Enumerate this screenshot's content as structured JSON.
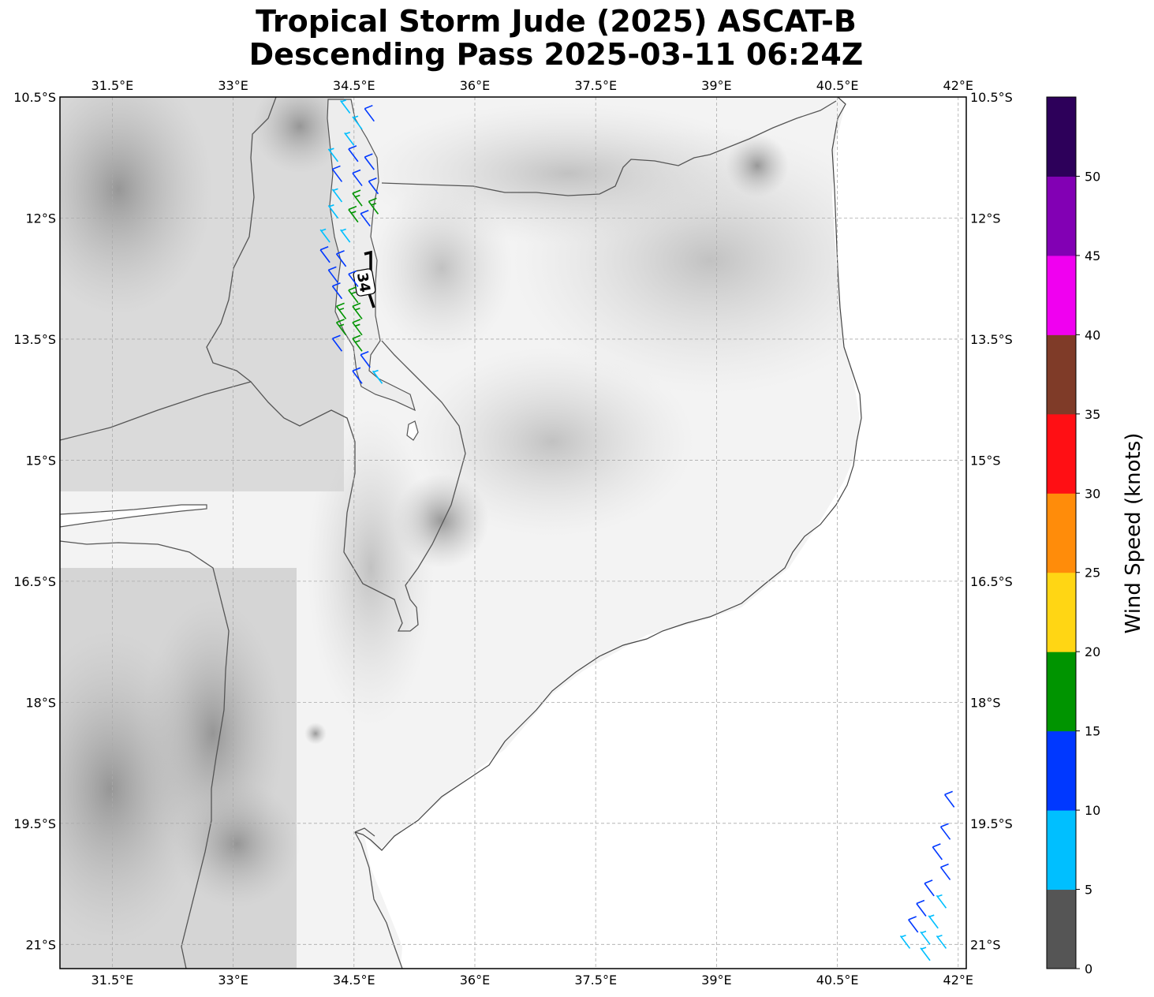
{
  "title": {
    "line1": "Tropical Storm Jude (2025) ASCAT-B",
    "line2": "Descending Pass 2025-03-11 06:24Z"
  },
  "map": {
    "lon_range": [
      30.85,
      42.1
    ],
    "lat_range": [
      -10.5,
      -21.3
    ],
    "lon_ticks": [
      {
        "value": 31.5,
        "label": "31.5°E"
      },
      {
        "value": 33.0,
        "label": "33°E"
      },
      {
        "value": 34.5,
        "label": "34.5°E"
      },
      {
        "value": 36.0,
        "label": "36°E"
      },
      {
        "value": 37.5,
        "label": "37.5°E"
      },
      {
        "value": 39.0,
        "label": "39°E"
      },
      {
        "value": 40.5,
        "label": "40.5°E"
      },
      {
        "value": 42.0,
        "label": "42°E"
      }
    ],
    "lat_ticks": [
      {
        "value": -10.5,
        "label": "10.5°S"
      },
      {
        "value": -12.0,
        "label": "12°S"
      },
      {
        "value": -13.5,
        "label": "13.5°S"
      },
      {
        "value": -15.0,
        "label": "15°S"
      },
      {
        "value": -16.5,
        "label": "16.5°S"
      },
      {
        "value": -18.0,
        "label": "18°S"
      },
      {
        "value": -19.5,
        "label": "19.5°S"
      },
      {
        "value": -21.0,
        "label": "21°S"
      }
    ],
    "grid": true,
    "contour_label": "34"
  },
  "colorbar": {
    "label": "Wind Speed (knots)",
    "bins": [
      {
        "from": 0,
        "to": 5,
        "color": "#555555"
      },
      {
        "from": 5,
        "to": 10,
        "color": "#00bfff"
      },
      {
        "from": 10,
        "to": 15,
        "color": "#0038ff"
      },
      {
        "from": 15,
        "to": 20,
        "color": "#009400"
      },
      {
        "from": 20,
        "to": 25,
        "color": "#ffd614"
      },
      {
        "from": 25,
        "to": 30,
        "color": "#ff8c0a"
      },
      {
        "from": 30,
        "to": 35,
        "color": "#ff0f14"
      },
      {
        "from": 35,
        "to": 40,
        "color": "#7f3b28"
      },
      {
        "from": 40,
        "to": 45,
        "color": "#f000f0"
      },
      {
        "from": 45,
        "to": 50,
        "color": "#8200b4"
      },
      {
        "from": 50,
        "to": 55,
        "color": "#2d005a"
      }
    ],
    "tick_labels": [
      "0",
      "5",
      "10",
      "15",
      "20",
      "25",
      "30",
      "35",
      "40",
      "45",
      "50"
    ]
  },
  "wind_barbs": [
    {
      "lon": 34.45,
      "lat": -10.7,
      "speed": 7
    },
    {
      "lon": 34.6,
      "lat": -10.9,
      "speed": 8
    },
    {
      "lon": 34.75,
      "lat": -10.8,
      "speed": 12
    },
    {
      "lon": 34.5,
      "lat": -11.1,
      "speed": 8
    },
    {
      "lon": 34.3,
      "lat": -11.3,
      "speed": 7
    },
    {
      "lon": 34.55,
      "lat": -11.3,
      "speed": 11
    },
    {
      "lon": 34.75,
      "lat": -11.4,
      "speed": 12
    },
    {
      "lon": 34.35,
      "lat": -11.55,
      "speed": 11
    },
    {
      "lon": 34.6,
      "lat": -11.6,
      "speed": 12
    },
    {
      "lon": 34.8,
      "lat": -11.7,
      "speed": 13
    },
    {
      "lon": 34.35,
      "lat": -11.8,
      "speed": 9
    },
    {
      "lon": 34.6,
      "lat": -11.85,
      "speed": 16
    },
    {
      "lon": 34.8,
      "lat": -11.95,
      "speed": 17
    },
    {
      "lon": 34.3,
      "lat": -12.0,
      "speed": 8
    },
    {
      "lon": 34.55,
      "lat": -12.05,
      "speed": 16
    },
    {
      "lon": 34.7,
      "lat": -12.1,
      "speed": 12
    },
    {
      "lon": 34.2,
      "lat": -12.3,
      "speed": 8
    },
    {
      "lon": 34.45,
      "lat": -12.3,
      "speed": 9
    },
    {
      "lon": 34.2,
      "lat": -12.55,
      "speed": 12
    },
    {
      "lon": 34.4,
      "lat": -12.6,
      "speed": 11
    },
    {
      "lon": 34.3,
      "lat": -12.8,
      "speed": 12
    },
    {
      "lon": 34.55,
      "lat": -12.85,
      "speed": 12
    },
    {
      "lon": 34.35,
      "lat": -13.0,
      "speed": 11
    },
    {
      "lon": 34.55,
      "lat": -13.05,
      "speed": 16
    },
    {
      "lon": 34.4,
      "lat": -13.25,
      "speed": 17
    },
    {
      "lon": 34.6,
      "lat": -13.25,
      "speed": 17
    },
    {
      "lon": 34.4,
      "lat": -13.45,
      "speed": 16
    },
    {
      "lon": 34.6,
      "lat": -13.45,
      "speed": 17
    },
    {
      "lon": 34.35,
      "lat": -13.65,
      "speed": 12
    },
    {
      "lon": 34.6,
      "lat": -13.65,
      "speed": 16
    },
    {
      "lon": 34.7,
      "lat": -13.85,
      "speed": 11
    },
    {
      "lon": 34.6,
      "lat": -14.05,
      "speed": 12
    },
    {
      "lon": 34.85,
      "lat": -14.05,
      "speed": 8
    },
    {
      "lon": 41.95,
      "lat": -19.3,
      "speed": 12
    },
    {
      "lon": 41.9,
      "lat": -19.7,
      "speed": 12
    },
    {
      "lon": 41.8,
      "lat": -19.95,
      "speed": 12
    },
    {
      "lon": 41.9,
      "lat": -20.2,
      "speed": 12
    },
    {
      "lon": 41.7,
      "lat": -20.4,
      "speed": 12
    },
    {
      "lon": 41.85,
      "lat": -20.55,
      "speed": 8
    },
    {
      "lon": 41.6,
      "lat": -20.65,
      "speed": 12
    },
    {
      "lon": 41.75,
      "lat": -20.8,
      "speed": 8
    },
    {
      "lon": 41.5,
      "lat": -20.85,
      "speed": 12
    },
    {
      "lon": 41.65,
      "lat": -21.0,
      "speed": 8
    },
    {
      "lon": 41.4,
      "lat": -21.05,
      "speed": 8
    },
    {
      "lon": 41.85,
      "lat": -21.05,
      "speed": 8
    },
    {
      "lon": 41.65,
      "lat": -21.2,
      "speed": 8
    }
  ]
}
